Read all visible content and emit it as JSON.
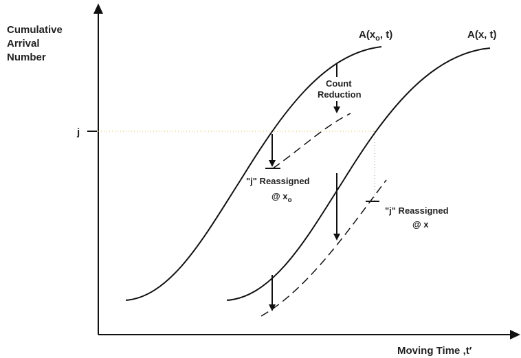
{
  "axes": {
    "y_label": [
      "Cumulative",
      "Arrival",
      "Number"
    ],
    "y_tick": "j",
    "x_label": "Moving Time ,t′"
  },
  "curves": [
    {
      "label": "A(x",
      "subscript": "o",
      "label_end": ", t)"
    },
    {
      "label": "A(x, t)"
    }
  ],
  "annotations": {
    "count_reduction": [
      "Count",
      "Reduction"
    ],
    "reassigned_xo": {
      "line1": "\"j\" Reassigned",
      "line2": "@ x",
      "subscript": "o"
    },
    "reassigned_x": {
      "line1": "\"j\" Reassigned",
      "line2": "@ x"
    }
  }
}
